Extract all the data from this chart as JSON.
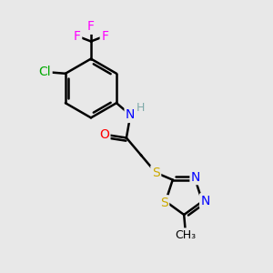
{
  "bg_color": "#e8e8e8",
  "atom_colors": {
    "C": "#000000",
    "H": "#7FAAAA",
    "N": "#0000FF",
    "O": "#FF0000",
    "S": "#CCAA00",
    "Cl": "#00AA00",
    "F": "#FF00FF"
  },
  "bond_color": "#000000",
  "bond_width": 1.8,
  "font_size": 10
}
